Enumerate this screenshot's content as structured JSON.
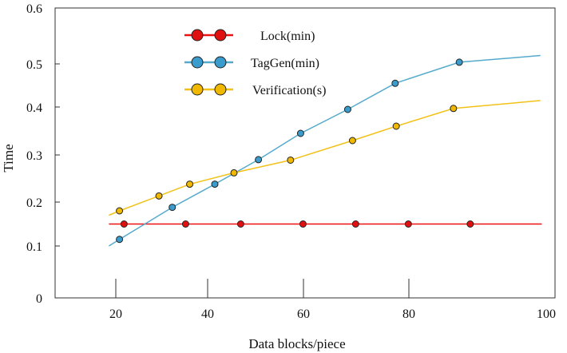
{
  "chart_data": {
    "type": "line",
    "title": "",
    "xlabel": "Data blocks/piece",
    "ylabel": "Time",
    "x_ticks": [
      "20",
      "40",
      "60",
      "80",
      "100"
    ],
    "y_ticks": [
      "0",
      "0.1",
      "0.2",
      "0.3",
      "0.4",
      "0.5",
      "0.6"
    ],
    "legend_position": "top-center",
    "series": [
      {
        "name": "Lock(min)",
        "color": "#ee1111",
        "marker_fill": "#e01010",
        "line_start": [
          18.5,
          0.15
        ],
        "line_end": [
          98.2,
          0.15
        ],
        "points": [
          [
            21.8,
            0.15
          ],
          [
            35.2,
            0.15
          ],
          [
            46.9,
            0.15
          ],
          [
            59.9,
            0.15
          ],
          [
            69.9,
            0.15
          ],
          [
            79.9,
            0.15
          ],
          [
            88.4,
            0.15
          ]
        ]
      },
      {
        "name": "TagGen(min)",
        "color": "#55aacc",
        "marker_fill": "#3a9ccc",
        "line_start": [
          18.5,
          0.1
        ],
        "line_end": [
          98.0,
          0.515
        ],
        "points": [
          [
            20.8,
            0.115
          ],
          [
            32.3,
            0.188
          ],
          [
            41.5,
            0.238
          ],
          [
            50.6,
            0.29
          ],
          [
            59.4,
            0.345
          ],
          [
            68.4,
            0.395
          ],
          [
            77.4,
            0.455
          ],
          [
            86.9,
            0.503
          ]
        ]
      },
      {
        "name": "Verification(s)",
        "color": "#f2c21a",
        "marker_fill": "#f0b800",
        "line_start": [
          18.5,
          0.17
        ],
        "line_end": [
          98.0,
          0.415
        ],
        "points": [
          [
            20.8,
            0.18
          ],
          [
            29.4,
            0.213
          ],
          [
            36.1,
            0.238
          ],
          [
            45.5,
            0.262
          ],
          [
            57.3,
            0.289
          ],
          [
            69.3,
            0.33
          ],
          [
            77.6,
            0.36
          ],
          [
            86.1,
            0.397
          ]
        ]
      }
    ]
  }
}
